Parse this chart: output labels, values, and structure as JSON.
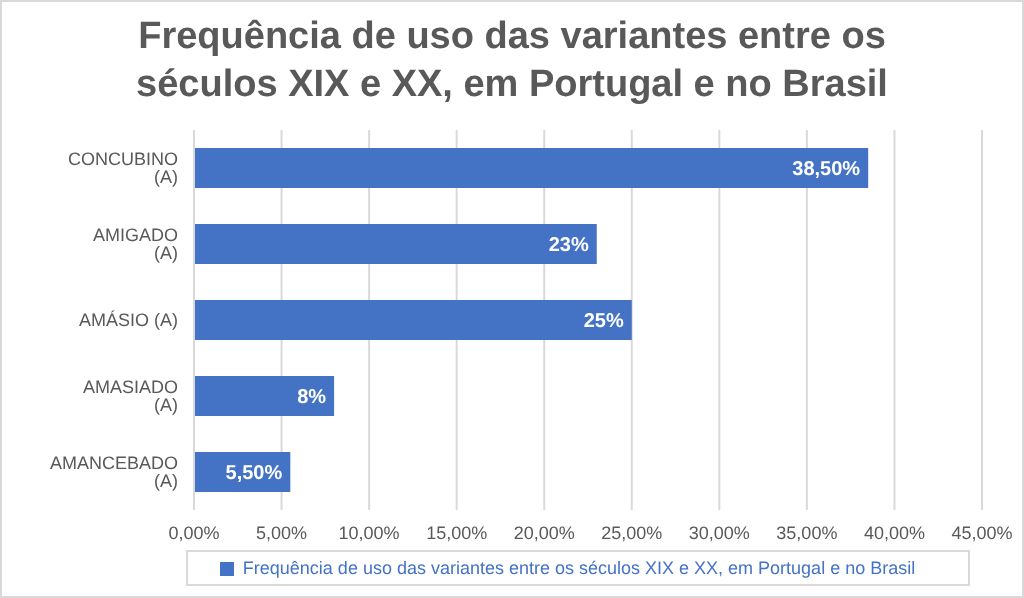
{
  "chart_data": {
    "type": "bar",
    "orientation": "horizontal",
    "title": "Frequência de uso das variantes entre os séculos XIX e XX, em Portugal e no Brasil",
    "categories": [
      "CONCUBINO (A)",
      "AMIGADO (A)",
      "AMÁSIO (A)",
      "AMASIADO (A)",
      "AMANCEBADO (A)"
    ],
    "series": [
      {
        "name": "Frequência de uso das variantes entre os séculos XIX e XX, em Portugal e no Brasil",
        "color": "#4472c4",
        "values": [
          38.5,
          23,
          25,
          8,
          5.5
        ],
        "value_labels": [
          "38,50%",
          "23%",
          "25%",
          "8%",
          "5,50%"
        ]
      }
    ],
    "xlim": [
      0,
      45
    ],
    "xticks": [
      {
        "value": 0,
        "label": "0,00%"
      },
      {
        "value": 5,
        "label": "5,00%"
      },
      {
        "value": 10,
        "label": "10,00%"
      },
      {
        "value": 15,
        "label": "15,00%"
      },
      {
        "value": 20,
        "label": "20,00%"
      },
      {
        "value": 25,
        "label": "25,00%"
      },
      {
        "value": 30,
        "label": "30,00%"
      },
      {
        "value": 35,
        "label": "35,00%"
      },
      {
        "value": 40,
        "label": "40,00%"
      },
      {
        "value": 45,
        "label": "45,00%"
      }
    ],
    "grid": "x",
    "legend": "bottom"
  }
}
